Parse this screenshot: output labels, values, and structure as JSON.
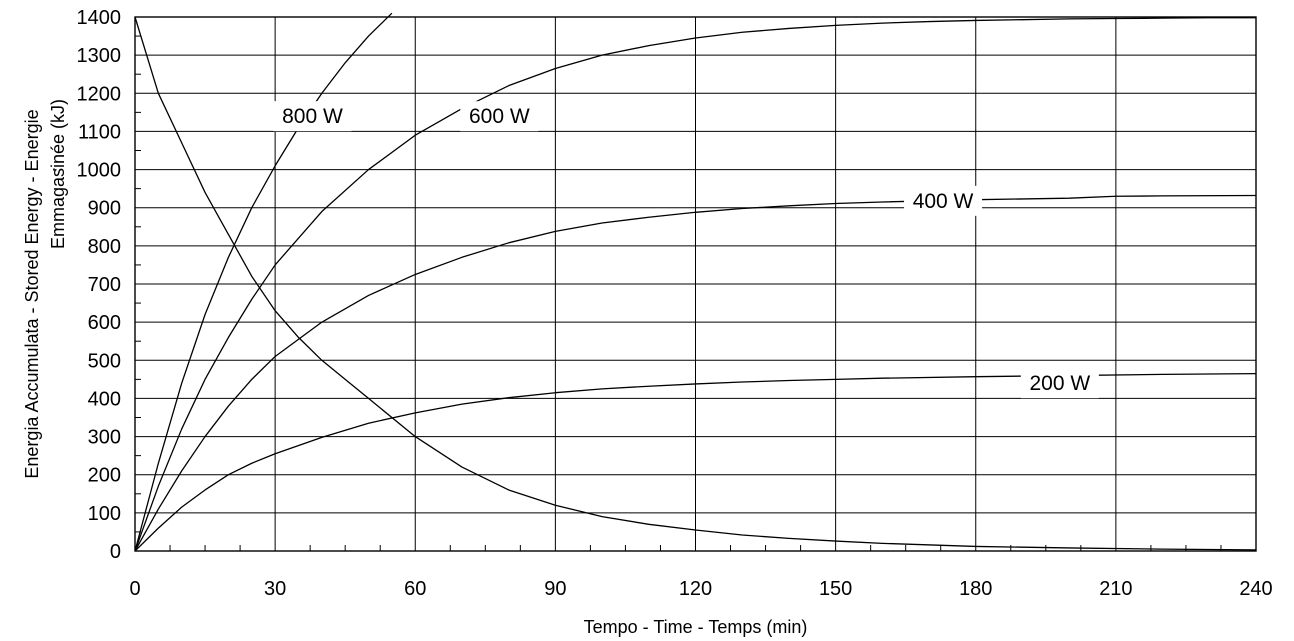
{
  "chart_data": {
    "type": "line",
    "title": "",
    "xlabel": "Tempo - Time - Temps  (min)",
    "ylabel_line1": "Energia Accumulata - Stored Energy - Energie",
    "ylabel_line2": "Emmagasinée  (kJ)",
    "ylabel_dot": "·",
    "xlim": [
      0,
      240
    ],
    "ylim": [
      0,
      1400
    ],
    "x_ticks": [
      0,
      30,
      60,
      90,
      120,
      150,
      180,
      210,
      240
    ],
    "y_ticks": [
      0,
      100,
      200,
      300,
      400,
      500,
      600,
      700,
      800,
      900,
      1000,
      1100,
      1200,
      1300,
      1400
    ],
    "grid": true,
    "series": [
      {
        "name": "800 W",
        "x": [
          0,
          5,
          10,
          15,
          20,
          25,
          30,
          35,
          40,
          45,
          50,
          55
        ],
        "y": [
          0,
          230,
          440,
          620,
          770,
          900,
          1010,
          1110,
          1200,
          1280,
          1350,
          1410
        ]
      },
      {
        "name": "600 W",
        "x": [
          0,
          5,
          10,
          15,
          20,
          25,
          30,
          40,
          50,
          60,
          70,
          80,
          90,
          100,
          110,
          120,
          130,
          140,
          150,
          160,
          170,
          180,
          190,
          200,
          210,
          220,
          230,
          240
        ],
        "y": [
          0,
          170,
          320,
          450,
          560,
          660,
          750,
          890,
          1000,
          1090,
          1160,
          1220,
          1265,
          1300,
          1325,
          1345,
          1360,
          1370,
          1378,
          1384,
          1388,
          1391,
          1393,
          1395,
          1396,
          1397,
          1398,
          1398
        ]
      },
      {
        "name": "400 W",
        "x": [
          0,
          5,
          10,
          15,
          20,
          25,
          30,
          40,
          50,
          60,
          70,
          80,
          90,
          100,
          110,
          120,
          130,
          140,
          150,
          160,
          180,
          200,
          210,
          220,
          240
        ],
        "y": [
          0,
          110,
          210,
          300,
          380,
          450,
          510,
          600,
          670,
          725,
          770,
          808,
          838,
          860,
          875,
          888,
          898,
          905,
          911,
          915,
          921,
          925,
          930,
          931,
          932
        ]
      },
      {
        "name": "200 W",
        "x": [
          0,
          5,
          10,
          15,
          20,
          25,
          30,
          40,
          50,
          60,
          70,
          80,
          90,
          100,
          110,
          120,
          130,
          140,
          150,
          160,
          180,
          200,
          220,
          240
        ],
        "y": [
          0,
          60,
          115,
          160,
          200,
          230,
          255,
          298,
          335,
          362,
          385,
          402,
          415,
          425,
          432,
          438,
          443,
          447,
          450,
          453,
          457,
          460,
          463,
          465
        ]
      },
      {
        "name": "",
        "x": [
          0,
          5,
          10,
          15,
          20,
          25,
          30,
          35,
          40,
          50,
          60,
          70,
          80,
          90,
          100,
          110,
          120,
          130,
          140,
          150,
          160,
          180,
          200,
          220,
          240
        ],
        "y": [
          1400,
          1200,
          1070,
          940,
          830,
          720,
          630,
          560,
          500,
          400,
          300,
          220,
          160,
          120,
          90,
          70,
          55,
          42,
          33,
          26,
          20,
          12,
          8,
          5,
          3
        ]
      }
    ],
    "labels": [
      {
        "text": "800 W",
        "x": 38,
        "y": 1140
      },
      {
        "text": "600 W",
        "x": 78,
        "y": 1140
      },
      {
        "text": "400 W",
        "x": 173,
        "y": 918
      },
      {
        "text": "200 W",
        "x": 198,
        "y": 440
      }
    ]
  }
}
